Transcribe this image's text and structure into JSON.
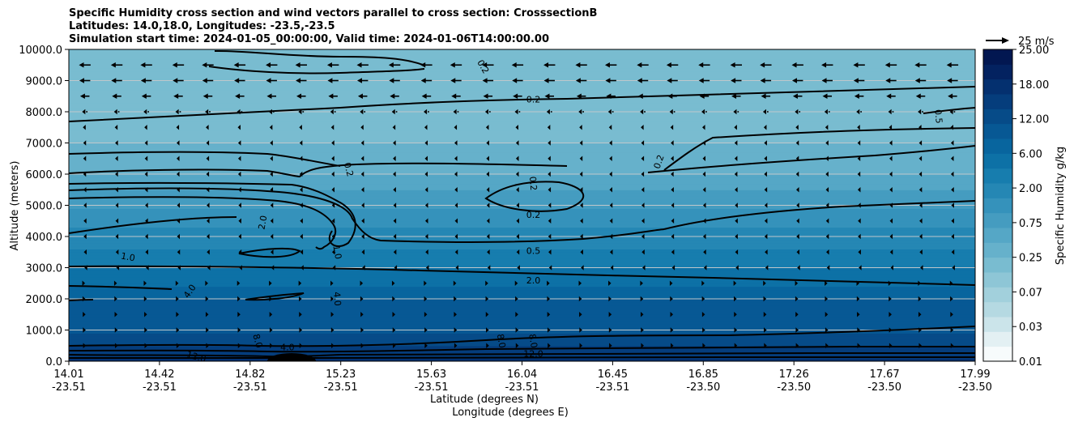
{
  "chart_data": {
    "type": "contourf",
    "title_lines": [
      "Specific Humidity cross section and wind vectors parallel to cross section: CrosssectionB",
      "Latitudes: 14.0,18.0, Longitudes: -23.5,-23.5",
      "Simulation start time: 2024-01-05_00:00:00, Valid time: 2024-01-06T14:00:00.00"
    ],
    "ylabel": "Altitude (meters)",
    "xlabel_lat": "Latitude (degrees N)",
    "xlabel_lon": "Longitude (degrees E)",
    "ylim": [
      0,
      10000
    ],
    "y_ticks": [
      {
        "value": 0,
        "label": "0.0"
      },
      {
        "value": 1000,
        "label": "1000.0"
      },
      {
        "value": 2000,
        "label": "2000.0"
      },
      {
        "value": 3000,
        "label": "3000.0"
      },
      {
        "value": 4000,
        "label": "4000.0"
      },
      {
        "value": 5000,
        "label": "5000.0"
      },
      {
        "value": 6000,
        "label": "6000.0"
      },
      {
        "value": 7000,
        "label": "7000.0"
      },
      {
        "value": 8000,
        "label": "8000.0"
      },
      {
        "value": 9000,
        "label": "9000.0"
      },
      {
        "value": 10000,
        "label": "10000.0"
      }
    ],
    "x_range": [
      14.01,
      17.99
    ],
    "x_ticks": [
      {
        "lat": "14.01",
        "lon": "-23.51"
      },
      {
        "lat": "14.42",
        "lon": "-23.51"
      },
      {
        "lat": "14.82",
        "lon": "-23.51"
      },
      {
        "lat": "15.23",
        "lon": "-23.51"
      },
      {
        "lat": "15.63",
        "lon": "-23.51"
      },
      {
        "lat": "16.04",
        "lon": "-23.51"
      },
      {
        "lat": "16.45",
        "lon": "-23.51"
      },
      {
        "lat": "16.85",
        "lon": "-23.50"
      },
      {
        "lat": "17.26",
        "lon": "-23.50"
      },
      {
        "lat": "17.67",
        "lon": "-23.50"
      },
      {
        "lat": "17.99",
        "lon": "-23.50"
      }
    ],
    "humidity_profile": [
      {
        "altitude": 0,
        "value": 13.0
      },
      {
        "altitude": 300,
        "value": 11.0
      },
      {
        "altitude": 600,
        "value": 7.0
      },
      {
        "altitude": 1000,
        "value": 5.5
      },
      {
        "altitude": 2000,
        "value": 4.0
      },
      {
        "altitude": 3000,
        "value": 2.0
      },
      {
        "altitude": 4000,
        "value": 1.2
      },
      {
        "altitude": 5000,
        "value": 0.7
      },
      {
        "altitude": 6000,
        "value": 0.35
      },
      {
        "altitude": 7000,
        "value": 0.25
      },
      {
        "altitude": 8000,
        "value": 0.2
      },
      {
        "altitude": 9000,
        "value": 0.18
      },
      {
        "altitude": 10000,
        "value": 0.15
      }
    ],
    "colorbar": {
      "label": "Specific Humidity g/kg",
      "levels": [
        0.01,
        0.02,
        0.03,
        0.05,
        0.07,
        0.1,
        0.15,
        0.25,
        0.35,
        0.5,
        0.75,
        1.0,
        1.5,
        2.0,
        3.0,
        4.0,
        6.0,
        8.0,
        12.0,
        15.0,
        18.0,
        25.0
      ],
      "tick_labels": [
        "0.01",
        "0.03",
        "0.07",
        "0.25",
        "0.75",
        "2.00",
        "6.00",
        "12.00",
        "18.00",
        "25.00"
      ],
      "colors": [
        "#f7fbfc",
        "#e3f0f3",
        "#cbe4ea",
        "#b5d9e2",
        "#a2d0dc",
        "#8ec6d6",
        "#79bcd0",
        "#66b1cb",
        "#55a7c6",
        "#459cc0",
        "#3592bb",
        "#2587b4",
        "#177dae",
        "#0d71a6",
        "#08659e",
        "#075894",
        "#064b88",
        "#053d7c",
        "#04306f",
        "#032260",
        "#021751"
      ]
    },
    "contour_labels": [
      {
        "text": "0.2",
        "lat": 15.83,
        "alt": 9450,
        "angle": 60
      },
      {
        "text": "0.2",
        "lat": 16.05,
        "alt": 8400,
        "angle": 0
      },
      {
        "text": "0.2",
        "lat": 15.24,
        "alt": 6150,
        "angle": 75
      },
      {
        "text": "0.2",
        "lat": 16.05,
        "alt": 5700,
        "angle": 85
      },
      {
        "text": "0.2",
        "lat": 16.05,
        "alt": 4700,
        "angle": 0
      },
      {
        "text": "0.2",
        "lat": 16.6,
        "alt": 6400,
        "angle": -70
      },
      {
        "text": "0.5",
        "lat": 17.83,
        "alt": 7850,
        "angle": 85
      },
      {
        "text": "0.5",
        "lat": 16.05,
        "alt": 3550,
        "angle": 0
      },
      {
        "text": "2.0",
        "lat": 16.05,
        "alt": 2600,
        "angle": 0
      },
      {
        "text": "2.0",
        "lat": 14.86,
        "alt": 4450,
        "angle": -80
      },
      {
        "text": "1.0",
        "lat": 14.27,
        "alt": 3350,
        "angle": 10
      },
      {
        "text": "1.0",
        "lat": 15.19,
        "alt": 3500,
        "angle": 80
      },
      {
        "text": "4.0",
        "lat": 14.54,
        "alt": 2250,
        "angle": -55
      },
      {
        "text": "4.0",
        "lat": 15.19,
        "alt": 2000,
        "angle": 85
      },
      {
        "text": "4.0",
        "lat": 14.97,
        "alt": 450,
        "angle": 0
      },
      {
        "text": "8.0",
        "lat": 14.84,
        "alt": 650,
        "angle": 75
      },
      {
        "text": "12.0",
        "lat": 14.57,
        "alt": 150,
        "angle": 15
      },
      {
        "text": "8.0",
        "lat": 15.91,
        "alt": 650,
        "angle": 80
      },
      {
        "text": "8.0",
        "lat": 16.05,
        "alt": 650,
        "angle": 80
      },
      {
        "text": "12.0",
        "lat": 16.05,
        "alt": 250,
        "angle": 0
      }
    ],
    "wind": {
      "reference_label": "25 m/s",
      "reference_speed": 25,
      "x_columns": [
        14.08,
        14.22,
        14.35,
        14.49,
        14.62,
        14.76,
        14.9,
        15.03,
        15.17,
        15.3,
        15.44,
        15.58,
        15.71,
        15.85,
        15.98,
        16.12,
        16.26,
        16.39,
        16.53,
        16.66,
        16.8,
        16.94,
        17.07,
        17.21,
        17.34,
        17.48,
        17.62,
        17.75,
        17.89
      ],
      "levels": [
        {
          "altitude": 9500,
          "speed": -15
        },
        {
          "altitude": 9000,
          "speed": -14
        },
        {
          "altitude": 8500,
          "speed": -12
        },
        {
          "altitude": 8000,
          "speed": -7
        },
        {
          "altitude": 7500,
          "speed": -5
        },
        {
          "altitude": 7000,
          "speed": -4
        },
        {
          "altitude": 6500,
          "speed": -4
        },
        {
          "altitude": 6000,
          "speed": -4
        },
        {
          "altitude": 5500,
          "speed": -3.5
        },
        {
          "altitude": 5000,
          "speed": -3
        },
        {
          "altitude": 4500,
          "speed": -3
        },
        {
          "altitude": 4000,
          "speed": -3
        },
        {
          "altitude": 3500,
          "speed": -2.5
        },
        {
          "altitude": 3000,
          "speed": -1
        },
        {
          "altitude": 2500,
          "speed": 0.8
        },
        {
          "altitude": 2000,
          "speed": 1.5
        },
        {
          "altitude": 1500,
          "speed": 2
        },
        {
          "altitude": 1000,
          "speed": 2.5
        },
        {
          "altitude": 500,
          "speed": 3
        }
      ]
    }
  }
}
